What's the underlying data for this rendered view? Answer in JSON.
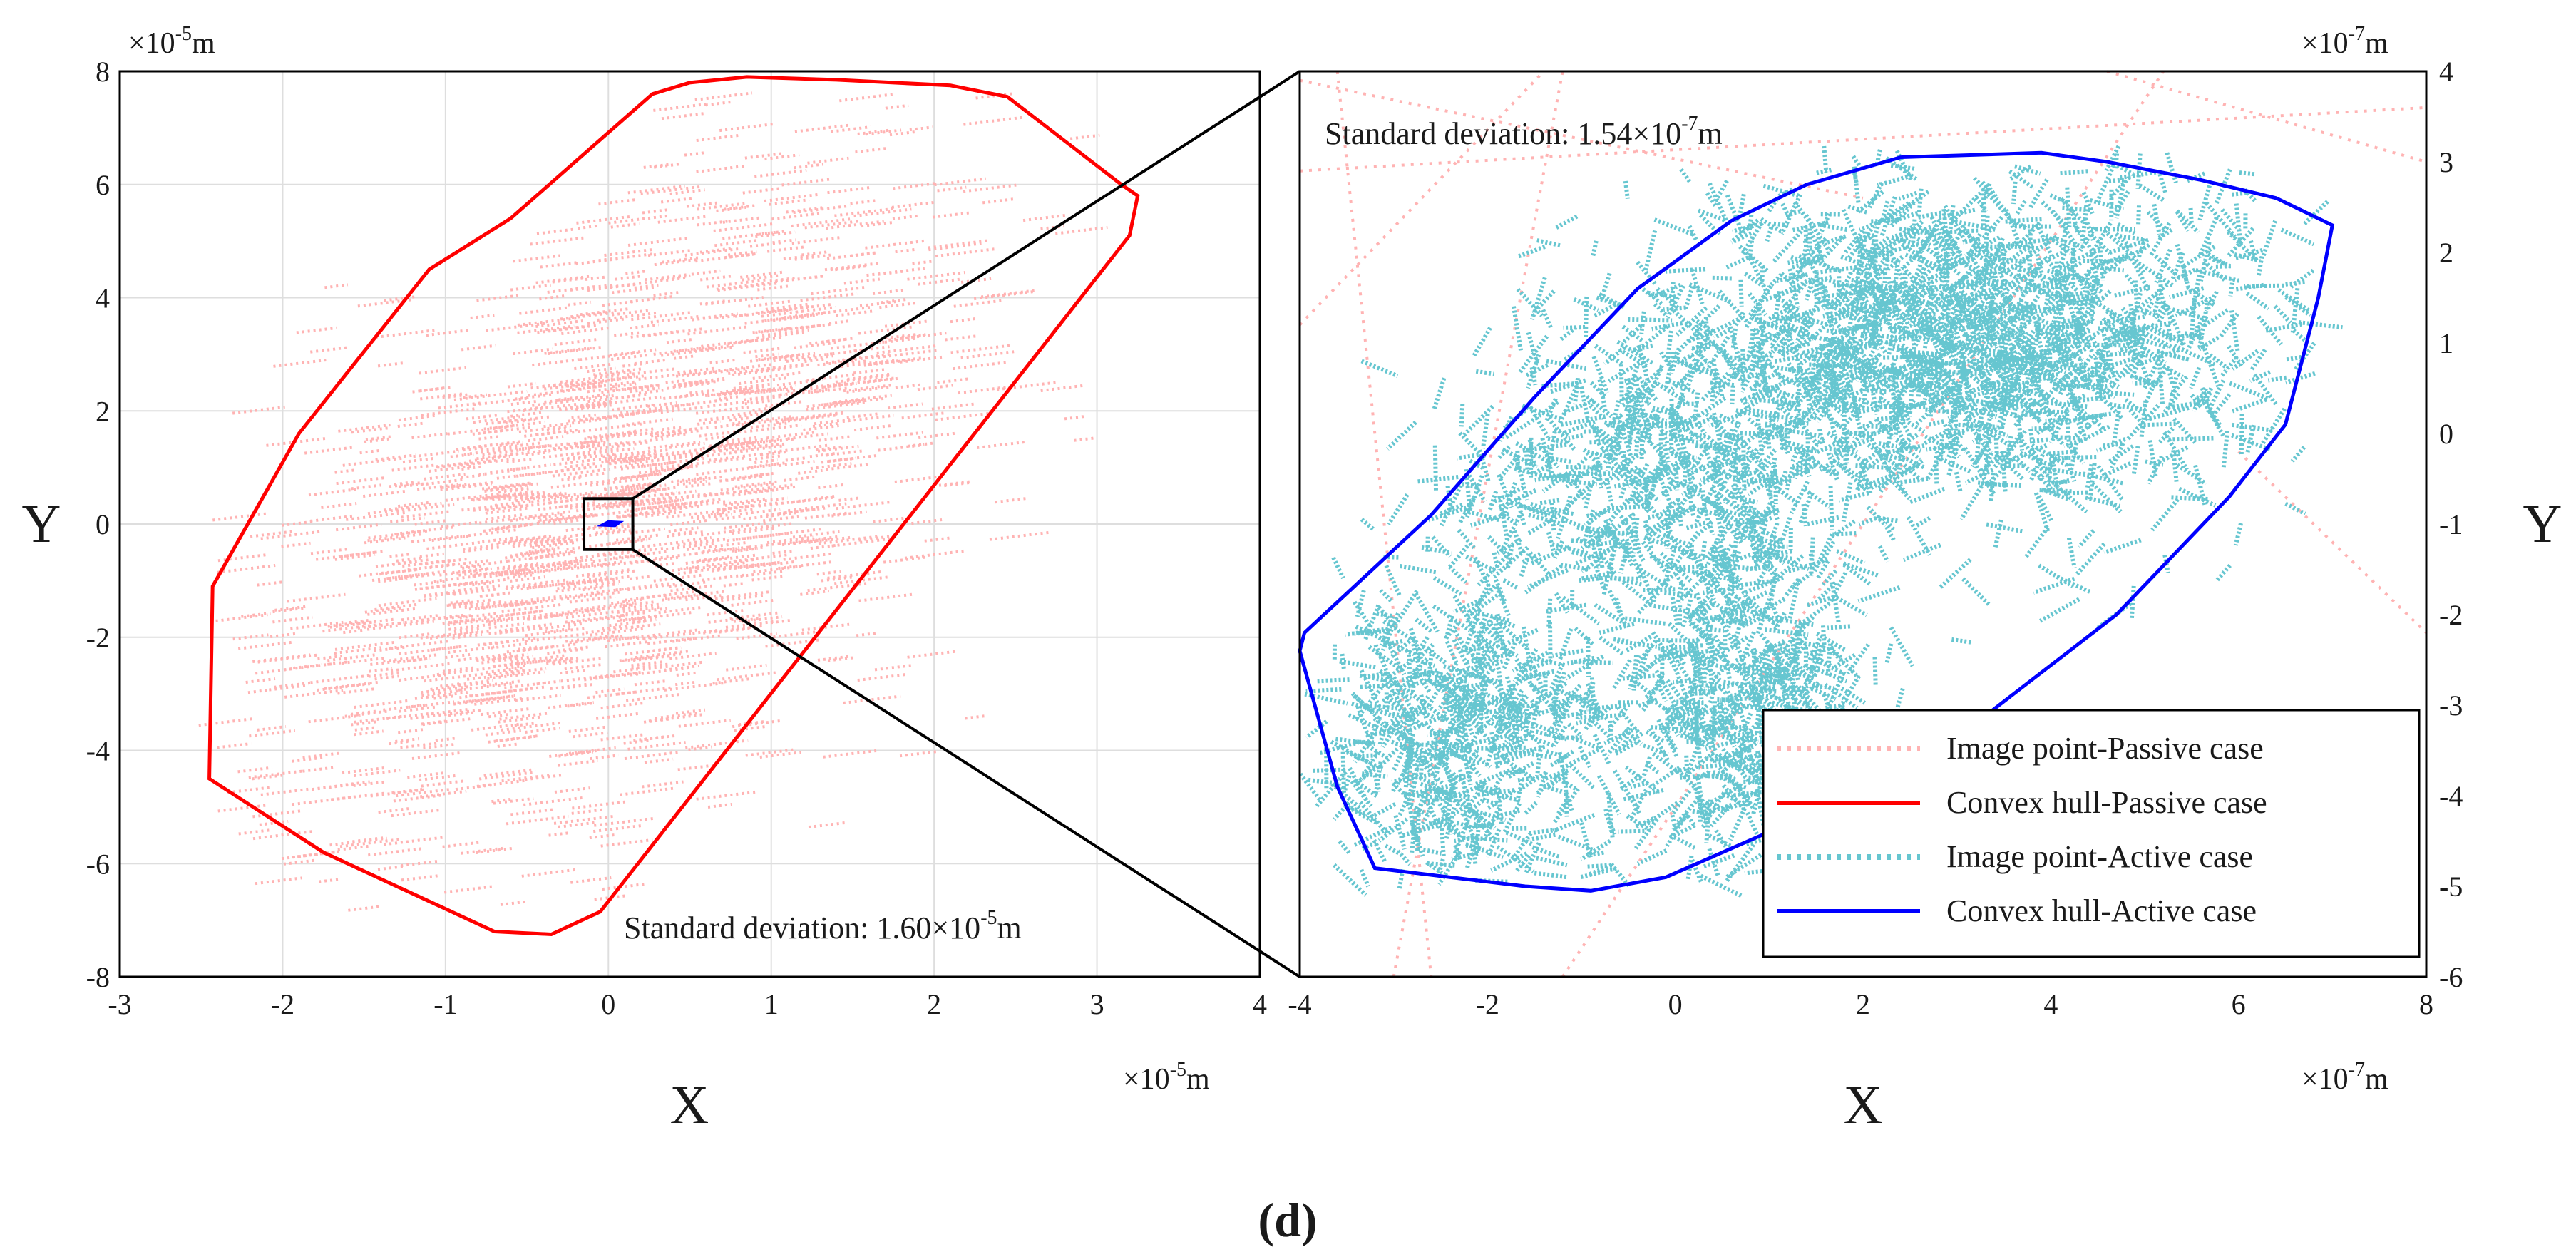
{
  "panel_label": "d",
  "colors": {
    "passive_points": "#ffb3b3",
    "passive_hull": "#ff0000",
    "active_points": "#66c6d0",
    "active_hull": "#0000ff",
    "grid": "#dedede",
    "frame": "#000000",
    "zoom_lines": "#000000"
  },
  "chart_data": [
    {
      "type": "scatter",
      "name": "passive-panel",
      "xlabel": "X",
      "ylabel": "Y",
      "x_exponent_label": {
        "prefix": "×10",
        "exp": "-5",
        "unit": "m"
      },
      "y_exponent_label": {
        "prefix": "×10",
        "exp": "-5",
        "unit": "m"
      },
      "xlim": [
        -3,
        4
      ],
      "ylim": [
        -8,
        8
      ],
      "xticks": [
        -3,
        -2,
        -1,
        0,
        1,
        2,
        3,
        4
      ],
      "yticks": [
        -8,
        -6,
        -4,
        -2,
        0,
        2,
        4,
        6,
        8
      ],
      "grid": true,
      "annotation": {
        "prefix": "Standard deviation: 1.60×10",
        "exp": "-5",
        "unit": "m"
      },
      "series": [
        {
          "name": "Convex hull-Passive case",
          "style": "line",
          "points": [
            [
              0.27,
              7.6
            ],
            [
              0.5,
              7.8
            ],
            [
              0.85,
              7.9
            ],
            [
              1.4,
              7.85
            ],
            [
              2.1,
              7.75
            ],
            [
              2.45,
              7.55
            ],
            [
              3.15,
              6.0
            ],
            [
              3.25,
              5.8
            ],
            [
              3.2,
              5.1
            ],
            [
              -0.05,
              -6.85
            ],
            [
              -0.35,
              -7.25
            ],
            [
              -0.7,
              -7.2
            ],
            [
              -1.75,
              -5.8
            ],
            [
              -2.45,
              -4.5
            ],
            [
              -2.43,
              -1.1
            ],
            [
              -1.9,
              1.6
            ],
            [
              -1.1,
              4.5
            ],
            [
              -0.6,
              5.4
            ],
            [
              0.27,
              7.6
            ]
          ]
        },
        {
          "name": "Image point-Passive case",
          "style": "dots",
          "cloud": {
            "mean": [
              0.1,
              0.3
            ],
            "std_x": 1.1,
            "std_y": 3.0,
            "correlation": 0.55,
            "count": 1400
          }
        },
        {
          "name": "Convex hull-Active case (zoom)",
          "style": "line",
          "points": [
            [
              -0.04,
              -0.02
            ],
            [
              0.0,
              0.04
            ],
            [
              0.07,
              0.03
            ],
            [
              0.04,
              -0.03
            ],
            [
              -0.04,
              -0.02
            ]
          ]
        }
      ],
      "zoom_box": {
        "x": [
          -0.15,
          0.15
        ],
        "y": [
          -0.45,
          0.45
        ]
      }
    },
    {
      "type": "scatter",
      "name": "active-panel",
      "xlabel": "X",
      "ylabel": "Y",
      "x_exponent_label": {
        "prefix": "×10",
        "exp": "-7",
        "unit": "m"
      },
      "y_exponent_label": {
        "prefix": "×10",
        "exp": "-7",
        "unit": "m"
      },
      "xlim": [
        -4,
        8
      ],
      "ylim": [
        -6,
        4
      ],
      "xticks": [
        -4,
        -2,
        0,
        2,
        4,
        6,
        8
      ],
      "yticks": [
        -6,
        -5,
        -4,
        -3,
        -2,
        -1,
        0,
        1,
        2,
        3,
        4
      ],
      "grid": false,
      "annotation": {
        "prefix": "Standard deviation: 1.54×10",
        "exp": "-7",
        "unit": "m"
      },
      "series": [
        {
          "name": "Convex hull-Active case",
          "style": "line",
          "points": [
            [
              -0.4,
              1.6
            ],
            [
              0.6,
              2.35
            ],
            [
              1.4,
              2.75
            ],
            [
              2.4,
              3.05
            ],
            [
              3.9,
              3.1
            ],
            [
              4.6,
              3.0
            ],
            [
              5.6,
              2.8
            ],
            [
              6.4,
              2.6
            ],
            [
              7.0,
              2.3
            ],
            [
              6.85,
              1.5
            ],
            [
              6.5,
              0.1
            ],
            [
              5.9,
              -0.7
            ],
            [
              4.7,
              -2.0
            ],
            [
              3.2,
              -3.2
            ],
            [
              1.0,
              -4.4
            ],
            [
              -0.1,
              -4.9
            ],
            [
              -0.9,
              -5.05
            ],
            [
              -1.6,
              -5.0
            ],
            [
              -3.2,
              -4.8
            ],
            [
              -3.6,
              -3.9
            ],
            [
              -4.0,
              -2.4
            ],
            [
              -3.95,
              -2.2
            ],
            [
              -2.6,
              -0.9
            ],
            [
              -1.5,
              0.4
            ],
            [
              -0.4,
              1.6
            ]
          ]
        },
        {
          "name": "Image point-Active case",
          "style": "dots",
          "clusters": [
            {
              "mean": [
                3.0,
                1.0
              ],
              "std_x": 1.6,
              "std_y": 0.95,
              "count": 1500
            },
            {
              "mean": [
                -2.3,
                -3.3
              ],
              "std_x": 0.8,
              "std_y": 0.9,
              "count": 550
            },
            {
              "mean": [
                0.7,
                -3.0
              ],
              "std_x": 0.7,
              "std_y": 0.9,
              "count": 500
            },
            {
              "mean": [
                -0.3,
                -0.5
              ],
              "std_x": 1.0,
              "std_y": 0.8,
              "count": 450
            }
          ]
        },
        {
          "name": "Image point-Passive case (background)",
          "style": "dotted-lines",
          "lines": [
            [
              [
                -4,
                3.9
              ],
              [
                2.0,
                2.6
              ]
            ],
            [
              [
                -3.6,
                4.0
              ],
              [
                -2.6,
                -6.0
              ]
            ],
            [
              [
                -1.2,
                -6.0
              ],
              [
                5.2,
                4.0
              ]
            ],
            [
              [
                6.0,
                -0.2
              ],
              [
                8.0,
                -2.2
              ]
            ],
            [
              [
                -4,
                1.2
              ],
              [
                -1.4,
                4.0
              ]
            ],
            [
              [
                4.6,
                4.0
              ],
              [
                8.0,
                3.0
              ]
            ],
            [
              [
                -4,
                2.9
              ],
              [
                8.0,
                3.6
              ]
            ],
            [
              [
                -3.0,
                -6.0
              ],
              [
                -1.2,
                4.0
              ]
            ]
          ]
        }
      ],
      "legend": {
        "placement": "bottom-right",
        "entries": [
          {
            "label": "Image point-Passive case",
            "style": "dotted",
            "color": "#ffb3b3"
          },
          {
            "label": "Convex hull-Passive case",
            "style": "solid",
            "color": "#ff0000"
          },
          {
            "label": "Image point-Active case",
            "style": "dotted",
            "color": "#66c6d0"
          },
          {
            "label": "Convex hull-Active case",
            "style": "solid",
            "color": "#0000ff"
          }
        ]
      }
    }
  ]
}
